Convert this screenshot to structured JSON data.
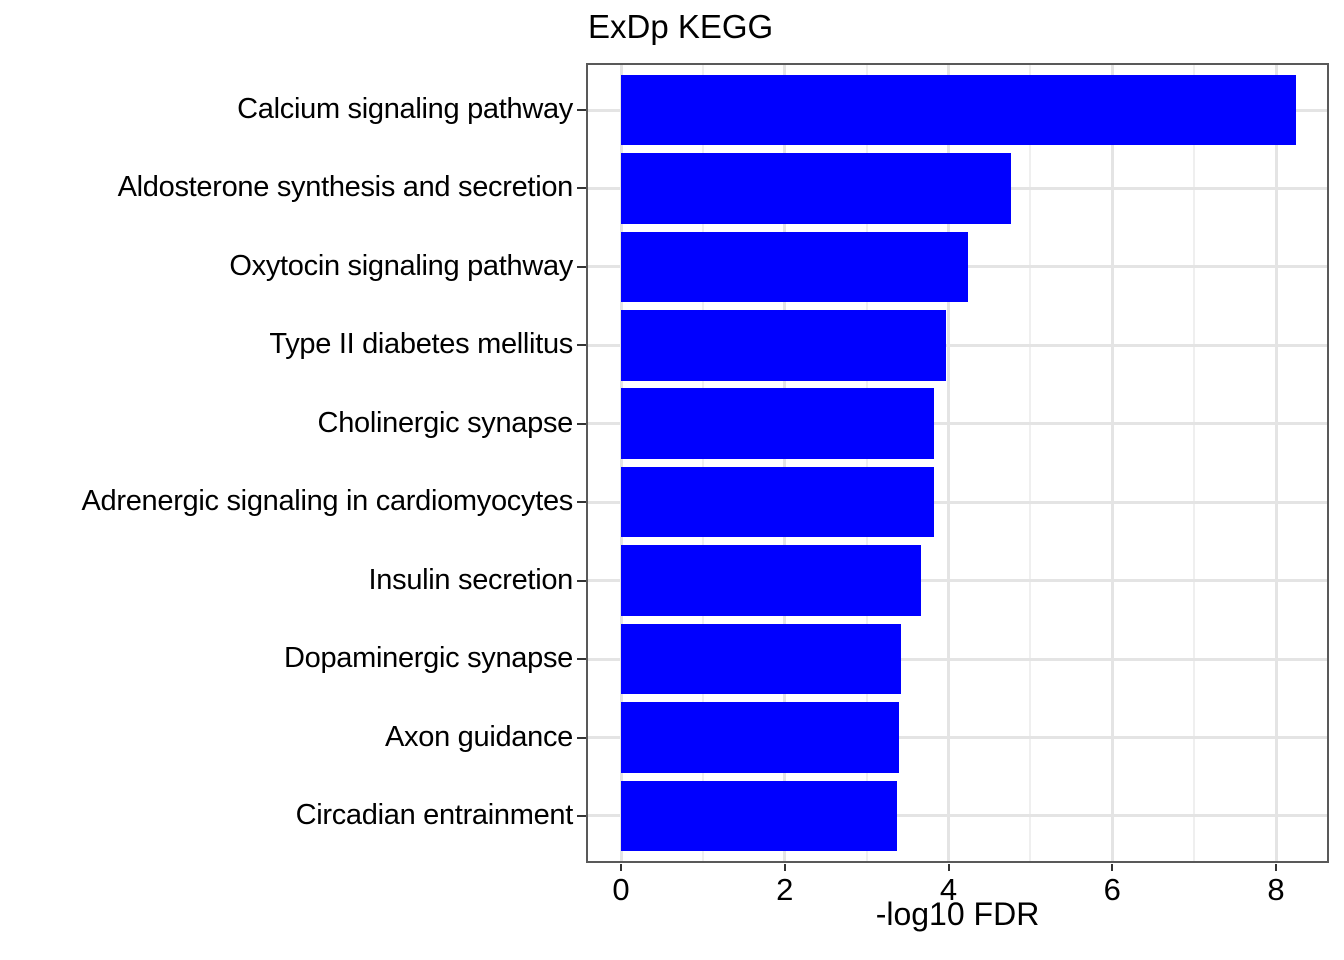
{
  "chart_data": {
    "type": "bar",
    "orientation": "horizontal",
    "title": "ExDp KEGG",
    "xlabel": "-log10 FDR",
    "ylabel": "",
    "categories": [
      "Calcium signaling pathway",
      "Aldosterone synthesis and secretion",
      "Oxytocin signaling pathway",
      "Type II diabetes mellitus",
      "Cholinergic synapse",
      "Adrenergic signaling in cardiomyocytes",
      "Insulin secretion",
      "Dopaminergic synapse",
      "Axon guidance",
      "Circadian entrainment"
    ],
    "values": [
      8.24,
      4.76,
      4.24,
      3.97,
      3.82,
      3.82,
      3.66,
      3.42,
      3.39,
      3.37
    ],
    "x_ticks": [
      0,
      2,
      4,
      6,
      8
    ],
    "x_minor_ticks": [
      1,
      3,
      5,
      7
    ],
    "xlim": [
      0,
      8.65
    ],
    "grid": true,
    "legend": false,
    "colors": {
      "bar": "#0000FF",
      "panel_border": "#595959",
      "major_grid": "#e4e4e4",
      "minor_grid": "#efefef",
      "tick": "#333333",
      "text": "#000000"
    }
  }
}
